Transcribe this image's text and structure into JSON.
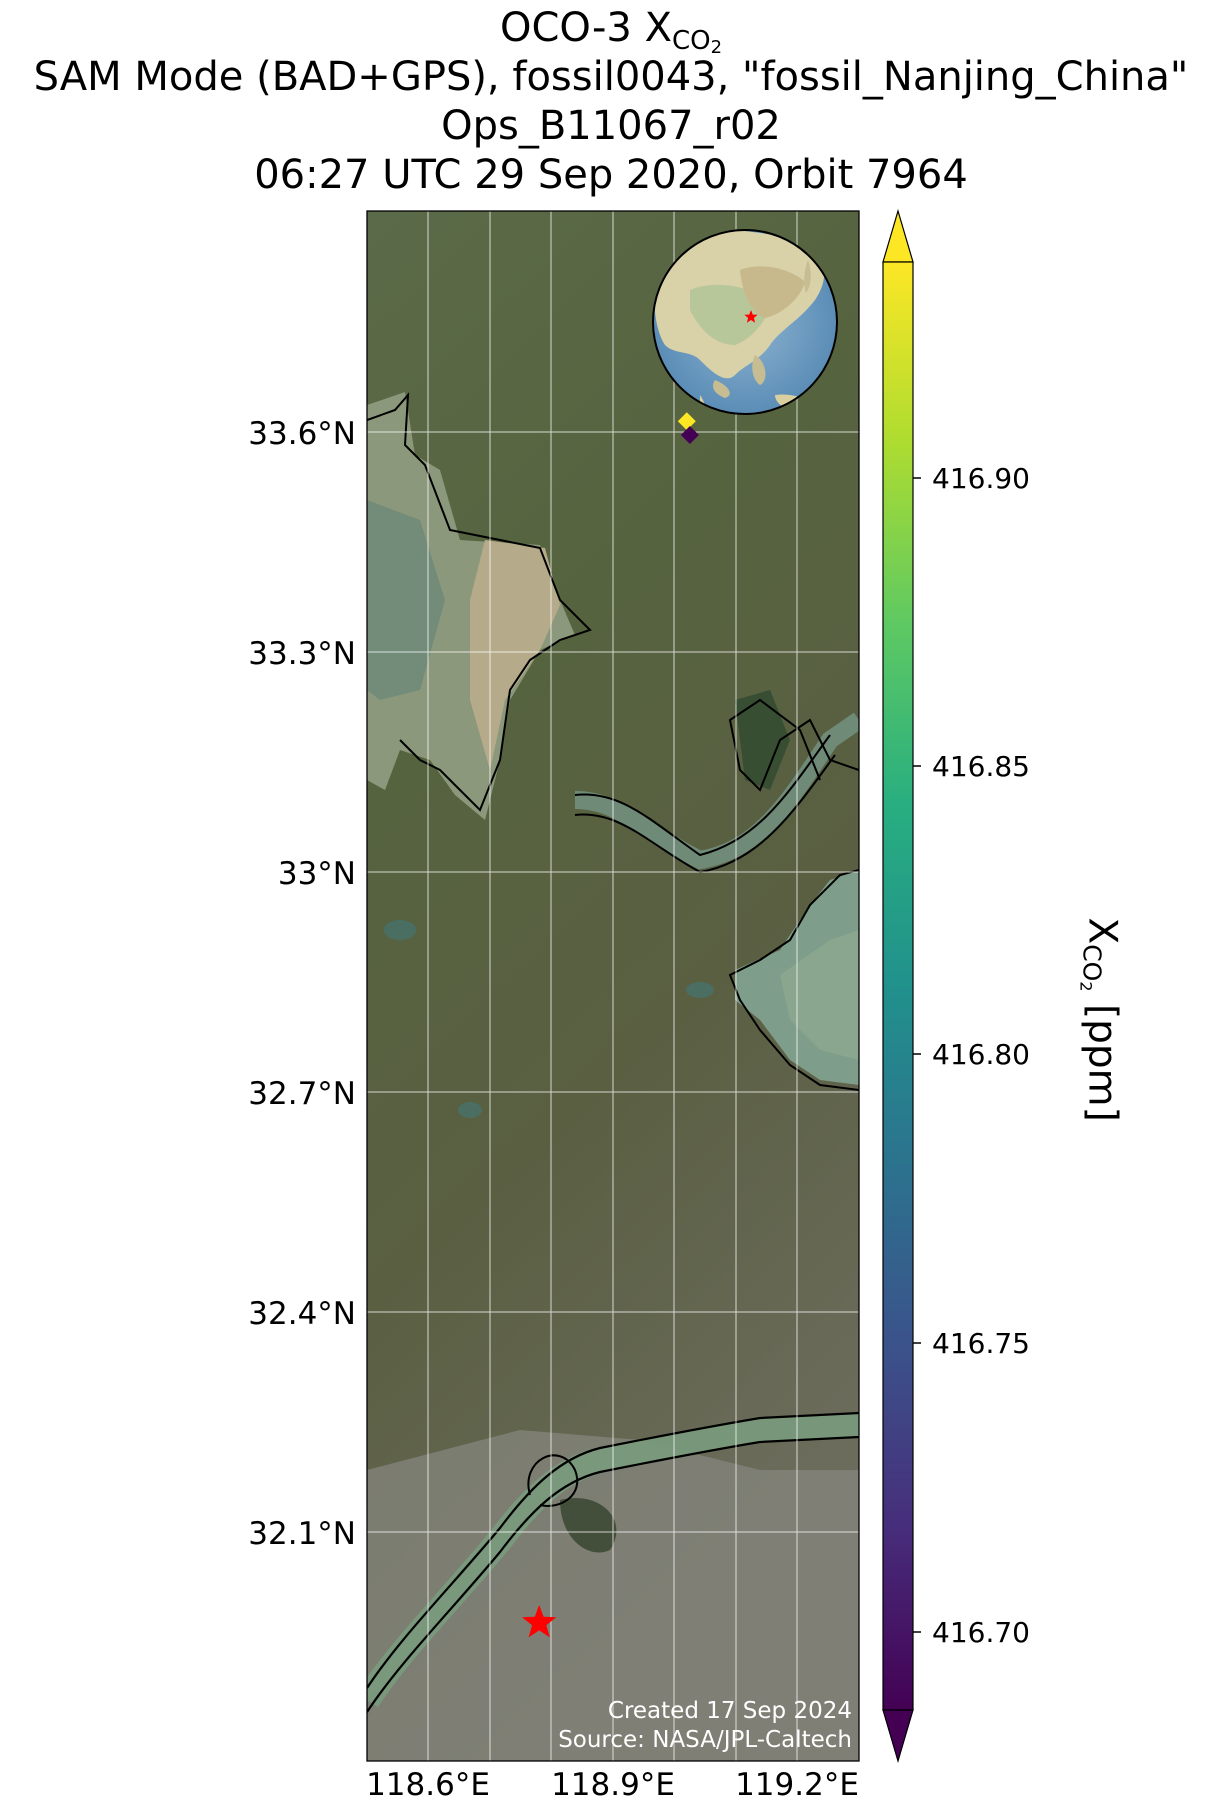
{
  "title": {
    "line1_prefix": "OCO-3 X",
    "line1_sub": "CO",
    "line1_sub2": "2",
    "line2": "SAM Mode (BAD+GPS), fossil0043, \"fossil_Nanjing_China\"",
    "line3": "Ops_B11067_r02",
    "line4": "06:27 UTC 29 Sep 2020, Orbit 7964"
  },
  "map": {
    "lon_ticks": [
      "118.6°E",
      "118.9°E",
      "119.2°E"
    ],
    "lat_ticks": [
      "33.6°N",
      "33.3°N",
      "33°N",
      "32.7°N",
      "32.4°N",
      "32.1°N"
    ],
    "footer_created": "Created 17 Sep 2024",
    "footer_source": "Source: NASA/JPL-Caltech",
    "target_marker": "red-star",
    "target_label": "fossil_Nanjing_China"
  },
  "colorbar": {
    "label_prefix": "X",
    "label_sub": "CO",
    "label_sub2": "2",
    "label_suffix": " [ppm]",
    "ticks": [
      "416.70",
      "416.75",
      "416.80",
      "416.85",
      "416.90"
    ],
    "colormap": "viridis",
    "extend": "both"
  },
  "chart_data": {
    "type": "scatter",
    "title": "OCO-3 XCO2",
    "xlabel": "",
    "ylabel": "",
    "xlim": [
      118.45,
      119.25
    ],
    "ylim": [
      31.88,
      33.9
    ],
    "colorbar_range": [
      416.68,
      416.93
    ],
    "points": [
      {
        "lon": 118.97,
        "lat": 33.626,
        "xco2": 416.93
      },
      {
        "lon": 118.975,
        "lat": 33.608,
        "xco2": 416.68
      }
    ],
    "target": {
      "lon": 118.73,
      "lat": 32.06
    }
  },
  "colors": {
    "target_star": "#ff0000",
    "coastline": "#000000",
    "gridline": "#ffffff"
  }
}
